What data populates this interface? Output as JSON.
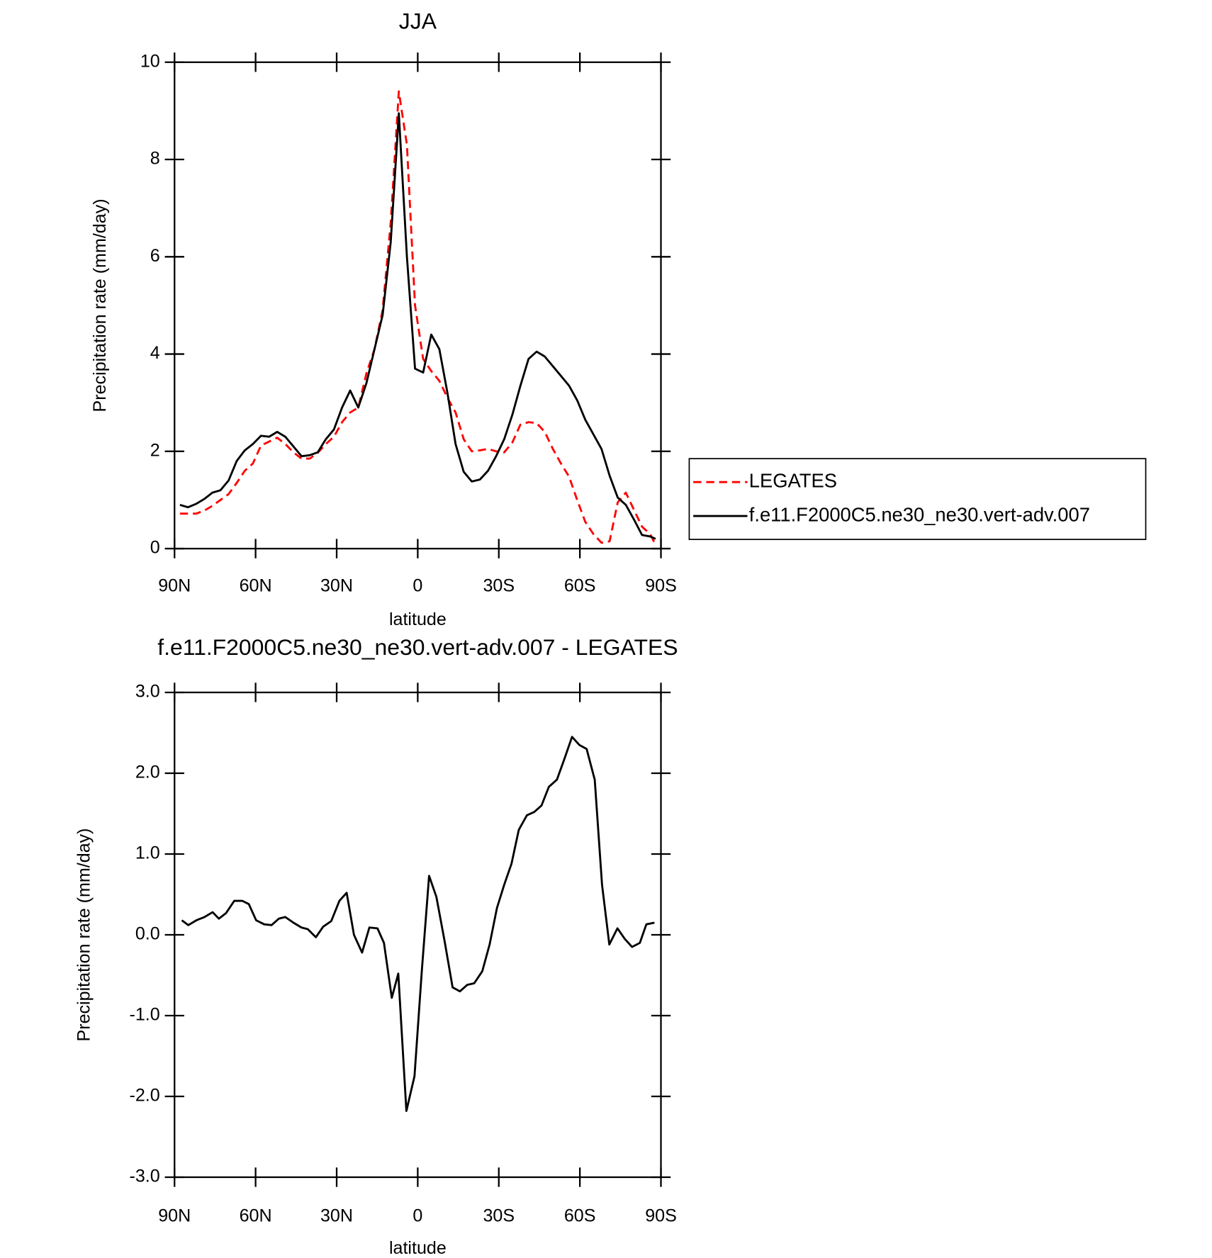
{
  "chart_data": [
    {
      "type": "line",
      "title": "JJA",
      "xlabel": "latitude",
      "ylabel": "Precipitation rate (mm/day)",
      "x": [
        88,
        85,
        82,
        79,
        76,
        73,
        70,
        67,
        64,
        61,
        58,
        55,
        52,
        49,
        46,
        43,
        40,
        37,
        34,
        31,
        28,
        25,
        22,
        19,
        16,
        13,
        10,
        7,
        4,
        1,
        -2,
        -5,
        -8,
        -11,
        -14,
        -17,
        -20,
        -23,
        -26,
        -29,
        -32,
        -35,
        -38,
        -41,
        -44,
        -47,
        -50,
        -53,
        -56,
        -59,
        -62,
        -65,
        -68,
        -71,
        -74,
        -77,
        -80,
        -83,
        -86,
        -88
      ],
      "series": [
        {
          "name": "LEGATES",
          "color": "#ff0000",
          "line_style": "dashed",
          "values": [
            0.72,
            0.72,
            0.72,
            0.78,
            0.88,
            1.0,
            1.12,
            1.35,
            1.6,
            1.75,
            2.12,
            2.2,
            2.28,
            2.15,
            1.98,
            1.85,
            1.85,
            1.97,
            2.15,
            2.3,
            2.6,
            2.8,
            2.9,
            3.6,
            4.1,
            4.9,
            6.7,
            9.4,
            8.3,
            5.0,
            3.9,
            3.65,
            3.45,
            3.1,
            2.8,
            2.25,
            2.0,
            2.02,
            2.05,
            2.0,
            1.98,
            2.18,
            2.55,
            2.6,
            2.58,
            2.4,
            2.05,
            1.75,
            1.48,
            1.0,
            0.55,
            0.3,
            0.12,
            0.15,
            0.95,
            1.15,
            0.8,
            0.45,
            0.3,
            0.08
          ]
        },
        {
          "name": "f.e11.F2000C5.ne30_ne30.vert-adv.007",
          "color": "#000000",
          "line_style": "solid",
          "values": [
            0.9,
            0.85,
            0.92,
            1.02,
            1.15,
            1.2,
            1.4,
            1.8,
            2.02,
            2.15,
            2.32,
            2.3,
            2.4,
            2.3,
            2.1,
            1.9,
            1.92,
            1.98,
            2.25,
            2.45,
            2.9,
            3.25,
            2.9,
            3.4,
            4.1,
            4.8,
            6.3,
            8.95,
            6.0,
            3.7,
            3.62,
            4.4,
            4.1,
            3.2,
            2.15,
            1.58,
            1.38,
            1.42,
            1.6,
            1.9,
            2.25,
            2.75,
            3.35,
            3.9,
            4.05,
            3.95,
            3.75,
            3.55,
            3.35,
            3.05,
            2.65,
            2.35,
            2.05,
            1.5,
            1.05,
            0.9,
            0.6,
            0.28,
            0.25,
            0.2
          ]
        }
      ],
      "xlim": [
        90,
        -90
      ],
      "xticks": [
        {
          "value": 90,
          "label": "90N"
        },
        {
          "value": 60,
          "label": "60N"
        },
        {
          "value": 30,
          "label": "30N"
        },
        0,
        {
          "value": -30,
          "label": "30S"
        },
        {
          "value": -60,
          "label": "60S"
        },
        {
          "value": -90,
          "label": "90S"
        }
      ],
      "ylim": [
        0,
        10
      ],
      "yticks": [
        0,
        2,
        4,
        6,
        8,
        10
      ],
      "legend": "outside-right"
    },
    {
      "type": "line",
      "title": "f.e11.F2000C5.ne30_ne30.vert-adv.007 - LEGATES",
      "xlabel": "latitude",
      "ylabel": "Precipitation rate (mm/day)",
      "x": [
        87.3,
        84.9,
        81.9,
        78.9,
        75.9,
        73.6,
        70.9,
        67.9,
        64.9,
        62.5,
        59.8,
        56.8,
        54.1,
        51.4,
        49.0,
        46.0,
        43.0,
        40.7,
        37.7,
        35.0,
        32.0,
        29.0,
        26.3,
        23.6,
        20.6,
        17.9,
        14.9,
        12.5,
        9.6,
        7.2,
        4.2,
        1.2,
        -1.5,
        -4.2,
        -6.9,
        -9.9,
        -12.9,
        -15.6,
        -18.3,
        -20.9,
        -23.9,
        -26.6,
        -29.3,
        -32.0,
        -34.7,
        -37.4,
        -40.4,
        -43.1,
        -45.8,
        -48.5,
        -51.5,
        -54.2,
        -57.1,
        -59.8,
        -62.5,
        -65.5,
        -68.2,
        -70.9,
        -73.9,
        -76.6,
        -79.3,
        -82.2,
        -84.6,
        -87.6
      ],
      "series": [
        {
          "color": "#000000",
          "line_style": "solid",
          "values": [
            0.18,
            0.12,
            0.18,
            0.22,
            0.28,
            0.2,
            0.27,
            0.42,
            0.42,
            0.38,
            0.18,
            0.13,
            0.12,
            0.2,
            0.22,
            0.15,
            0.09,
            0.07,
            -0.03,
            0.1,
            0.17,
            0.42,
            0.52,
            0.0,
            -0.22,
            0.09,
            0.08,
            -0.1,
            -0.78,
            -0.48,
            -2.18,
            -1.75,
            -0.45,
            0.73,
            0.47,
            -0.07,
            -0.65,
            -0.7,
            -0.62,
            -0.6,
            -0.45,
            -0.12,
            0.33,
            0.62,
            0.88,
            1.3,
            1.48,
            1.52,
            1.6,
            1.83,
            1.92,
            2.17,
            2.45,
            2.35,
            2.3,
            1.92,
            0.62,
            -0.12,
            0.08,
            -0.05,
            -0.15,
            -0.1,
            0.13,
            0.15
          ]
        }
      ],
      "xlim": [
        90,
        -90
      ],
      "xticks": [
        {
          "value": 90,
          "label": "90N"
        },
        {
          "value": 60,
          "label": "60N"
        },
        {
          "value": 30,
          "label": "30N"
        },
        0,
        {
          "value": -30,
          "label": "30S"
        },
        {
          "value": -60,
          "label": "60S"
        },
        {
          "value": -90,
          "label": "90S"
        }
      ],
      "ylim": [
        -3,
        3
      ],
      "yticks": [
        {
          "value": -3,
          "label": "-3.0"
        },
        {
          "value": -2,
          "label": "-2.0"
        },
        {
          "value": -1,
          "label": "-1.0"
        },
        {
          "value": 0,
          "label": "0.0"
        },
        {
          "value": 1,
          "label": "1.0"
        },
        {
          "value": 2,
          "label": "2.0"
        },
        {
          "value": 3,
          "label": "3.0"
        }
      ]
    }
  ]
}
